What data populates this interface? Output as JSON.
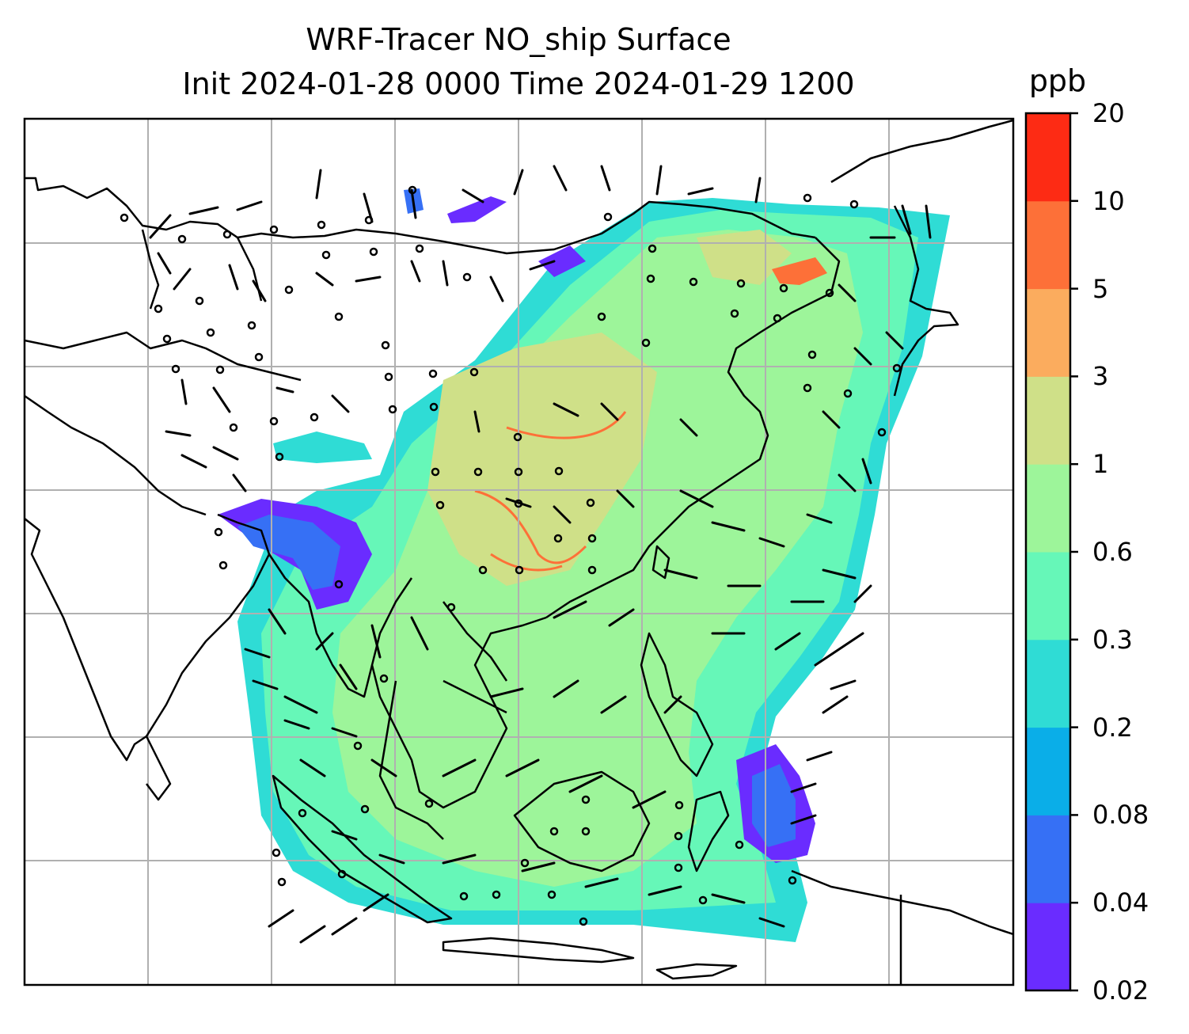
{
  "title": {
    "line1": "WRF-Tracer NO_ship Surface",
    "line2": "Init 2024-01-28 0000 Time 2024-01-29 1200"
  },
  "colorbar": {
    "unit": "ppb",
    "levels": [
      "0.02",
      "0.04",
      "0.08",
      "0.2",
      "0.3",
      "0.6",
      "1",
      "3",
      "5",
      "10",
      "20"
    ],
    "colors": [
      "#6a2cff",
      "#3670f5",
      "#0aaee8",
      "#2fdcd5",
      "#66f7b8",
      "#9df59a",
      "#cfe088",
      "#fbac5e",
      "#fd7038",
      "#fd2b14"
    ]
  },
  "map": {
    "gridlines": true,
    "coastline_color": "#000000",
    "gridline_color": "#b0b0b0",
    "wind_barbs": true
  }
}
